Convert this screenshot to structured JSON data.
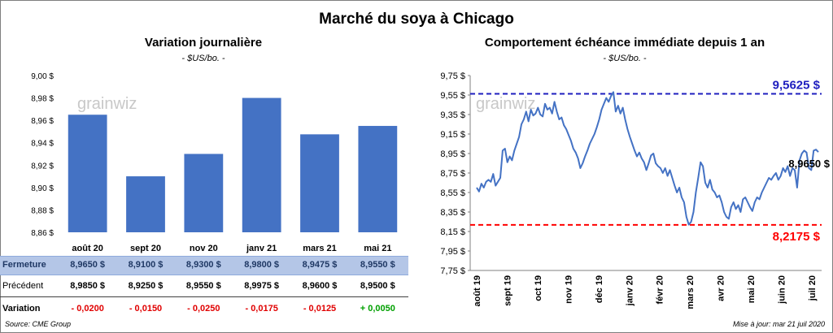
{
  "title": "Marché du soya à Chicago",
  "left": {
    "title": "Variation  journalière",
    "subtitle": "- $US/bo. -",
    "watermark": "grainwiz",
    "table": {
      "row_labels": {
        "close": "Fermeture",
        "prev": "Précédent",
        "var": "Variation"
      },
      "fermeture": [
        "8,9650  $",
        "8,9100  $",
        "8,9300  $",
        "8,9800  $",
        "8,9475  $",
        "8,9550  $"
      ],
      "precedent": [
        "8,9850  $",
        "8,9250  $",
        "8,9550  $",
        "8,9975  $",
        "8,9600  $",
        "8,9500  $"
      ],
      "variation": [
        "- 0,0200",
        "- 0,0150",
        "- 0,0250",
        "- 0,0175",
        "- 0,0125",
        "+ 0,0050"
      ]
    }
  },
  "right": {
    "title": "Comportement  échéance immédiate depuis 1 an",
    "subtitle": "- $US/bo. -",
    "watermark": "grainwiz",
    "high_label": "9,5625  $",
    "low_label": "8,2175  $",
    "last_label": "8,9650 $"
  },
  "footer": {
    "source": "Source: CME Group",
    "update": "Mise à jour: mar 21 juil 2020"
  },
  "colors": {
    "bar": "#4472c4",
    "line": "#4472c4",
    "high": "#1f1fbf",
    "low": "#ff0000",
    "header_band": "#b4c6e7"
  },
  "chart_data": [
    {
      "type": "bar",
      "title": "Variation  journalière",
      "categories": [
        "août 20",
        "sept 20",
        "nov 20",
        "janv 21",
        "mars 21",
        "mai 21"
      ],
      "values": [
        8.965,
        8.91,
        8.93,
        8.98,
        8.9475,
        8.955
      ],
      "ylim": [
        8.86,
        9.0
      ],
      "yticks": [
        "9,00 $",
        "8,98 $",
        "8,96 $",
        "8,94 $",
        "8,92 $",
        "8,90 $",
        "8,88 $",
        "8,86 $"
      ],
      "grid": false
    },
    {
      "type": "line",
      "title": "Comportement  échéance immédiate depuis 1 an",
      "xlabels": [
        "août 19",
        "sept 19",
        "oct 19",
        "nov 19",
        "déc 19",
        "janv 20",
        "févr 20",
        "mars 20",
        "avr 20",
        "mai 20",
        "juin 20",
        "juil 20"
      ],
      "ylim": [
        7.75,
        9.75
      ],
      "yticks": [
        "9,75 $",
        "9,55 $",
        "9,35 $",
        "9,15 $",
        "8,95 $",
        "8,75 $",
        "8,55 $",
        "8,35 $",
        "8,15 $",
        "7,95 $",
        "7,75 $"
      ],
      "high": 9.5625,
      "low": 8.2175,
      "last": 8.965,
      "grid": false,
      "series": [
        {
          "values": [
            8.6,
            8.56,
            8.64,
            8.6,
            8.66,
            8.68,
            8.66,
            8.74,
            8.62,
            8.66,
            8.7,
            8.98,
            9.0,
            8.86,
            8.92,
            8.88,
            8.98,
            9.05,
            9.12,
            9.25,
            9.3,
            9.38,
            9.28,
            9.4,
            9.34,
            9.36,
            9.42,
            9.35,
            9.33,
            9.46,
            9.4,
            9.42,
            9.36,
            9.48,
            9.38,
            9.3,
            9.32,
            9.24,
            9.2,
            9.14,
            9.08,
            9.0,
            8.96,
            8.9,
            8.8,
            8.85,
            8.92,
            8.98,
            9.05,
            9.1,
            9.15,
            9.22,
            9.3,
            9.4,
            9.46,
            9.52,
            9.48,
            9.54,
            9.58,
            9.38,
            9.44,
            9.36,
            9.42,
            9.3,
            9.2,
            9.12,
            9.05,
            8.98,
            8.92,
            8.96,
            8.9,
            8.86,
            8.78,
            8.85,
            8.93,
            8.95,
            8.85,
            8.82,
            8.8,
            8.75,
            8.8,
            8.72,
            8.78,
            8.7,
            8.62,
            8.55,
            8.6,
            8.5,
            8.45,
            8.3,
            8.22,
            8.25,
            8.35,
            8.55,
            8.7,
            8.86,
            8.82,
            8.65,
            8.6,
            8.68,
            8.58,
            8.55,
            8.5,
            8.52,
            8.45,
            8.35,
            8.3,
            8.28,
            8.4,
            8.45,
            8.38,
            8.42,
            8.35,
            8.48,
            8.5,
            8.45,
            8.4,
            8.36,
            8.45,
            8.5,
            8.48,
            8.55,
            8.6,
            8.65,
            8.7,
            8.68,
            8.72,
            8.75,
            8.68,
            8.72,
            8.8,
            8.76,
            8.82,
            8.72,
            8.8,
            8.78,
            8.6,
            8.88,
            8.95,
            8.98,
            8.96,
            8.8,
            8.78,
            8.98,
            8.99,
            8.965
          ]
        }
      ]
    }
  ]
}
